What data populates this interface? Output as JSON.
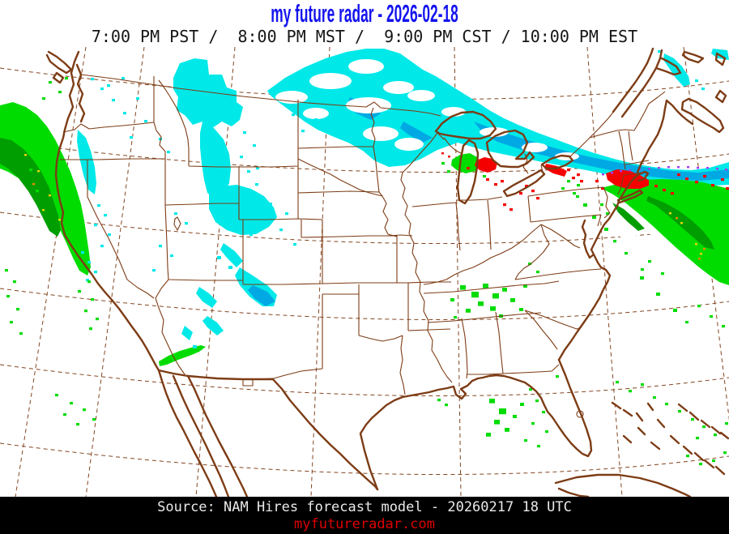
{
  "header": {
    "title": "my future radar - 2026-02-18",
    "times": "7:00 PM PST /  8:00 PM MST /  9:00 PM CST / 10:00 PM EST"
  },
  "footer": {
    "source": "Source: NAM Hires forecast model - 20260217 18 UTC",
    "website": "myfutureradar.com"
  },
  "colors": {
    "background": "#ffffff",
    "title_blue": "#1414ee",
    "map_line_brown": "#7d3c15",
    "footer_bg": "#000000",
    "footer_text": "#eaeaea",
    "website_red": "#dd0000",
    "snow_cyan": "#00e8e8",
    "snow_blue": "#00a9e4",
    "rain_green": "#00dc00",
    "rain_dark_green": "#009e00",
    "rain_heavy_yellow": "#e8d800",
    "rain_heavy_orange": "#f08c00",
    "freezing_rain_red": "#f50000",
    "sleet_purple": "#a43cf0"
  }
}
